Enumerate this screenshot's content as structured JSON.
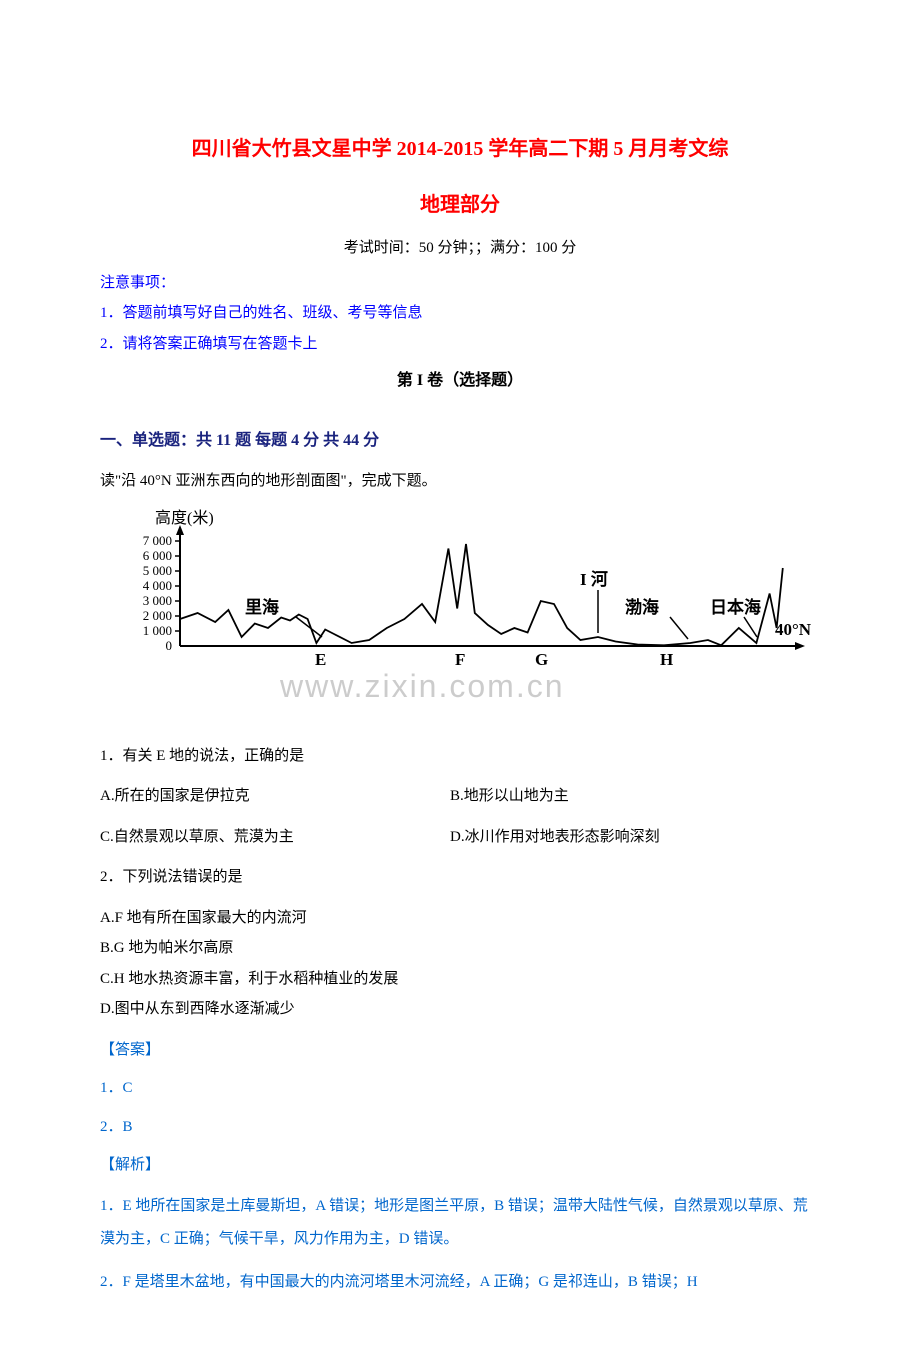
{
  "title": {
    "main": "四川省大竹县文星中学 2014-2015 学年高二下期 5 月月考文综",
    "sub": "地理部分"
  },
  "exam_info": "考试时间：50 分钟；；满分：100 分",
  "notice": {
    "header": "注意事项：",
    "items": [
      "1．答题前填写好自己的姓名、班级、考号等信息",
      "2．请将答案正确填写在答题卡上"
    ]
  },
  "section_header": "第 I 卷（选择题）",
  "question_type": "一、单选题：共 11 题 每题 4 分 共 44 分",
  "instruction": "读\"沿 40°N 亚洲东西向的地形剖面图\"，完成下题。",
  "chart": {
    "type": "line",
    "y_axis_label": "高度(米)",
    "y_ticks": [
      "7 000",
      "6 000",
      "5 000",
      "4 000",
      "3 000",
      "2 000",
      "1 000",
      "0"
    ],
    "x_labels": [
      "E",
      "F",
      "G",
      "H"
    ],
    "annotations": [
      "里海",
      "I 河",
      "渤海",
      "日本海"
    ],
    "right_label": "40°N",
    "line_color": "#000000",
    "background_color": "#ffffff",
    "axis_color": "#000000",
    "y_range": [
      0,
      7000
    ],
    "profile_points": [
      [
        0,
        1800
      ],
      [
        20,
        2200
      ],
      [
        40,
        1600
      ],
      [
        55,
        2400
      ],
      [
        70,
        600
      ],
      [
        85,
        1500
      ],
      [
        100,
        1200
      ],
      [
        115,
        1900
      ],
      [
        125,
        1700
      ],
      [
        135,
        2100
      ],
      [
        145,
        1800
      ],
      [
        155,
        200
      ],
      [
        165,
        1100
      ],
      [
        175,
        800
      ],
      [
        195,
        200
      ],
      [
        215,
        400
      ],
      [
        235,
        1200
      ],
      [
        255,
        1800
      ],
      [
        275,
        2800
      ],
      [
        290,
        1600
      ],
      [
        305,
        6500
      ],
      [
        315,
        2500
      ],
      [
        325,
        6800
      ],
      [
        335,
        2200
      ],
      [
        350,
        1400
      ],
      [
        365,
        800
      ],
      [
        380,
        1200
      ],
      [
        395,
        900
      ],
      [
        410,
        3000
      ],
      [
        425,
        2800
      ],
      [
        440,
        1200
      ],
      [
        455,
        400
      ],
      [
        475,
        600
      ],
      [
        495,
        300
      ],
      [
        520,
        100
      ],
      [
        550,
        50
      ],
      [
        580,
        200
      ],
      [
        600,
        400
      ],
      [
        615,
        50
      ],
      [
        635,
        1200
      ],
      [
        655,
        200
      ],
      [
        670,
        3500
      ],
      [
        678,
        1200
      ],
      [
        685,
        5200
      ]
    ]
  },
  "watermark": "www.zixin.com.cn",
  "questions": [
    {
      "number": "1．",
      "text": "有关 E 地的说法，正确的是",
      "options": [
        {
          "label": "A.",
          "text": "所在的国家是伊拉克"
        },
        {
          "label": "B.",
          "text": "地形以山地为主"
        },
        {
          "label": "C.",
          "text": "自然景观以草原、荒漠为主"
        },
        {
          "label": "D.",
          "text": "冰川作用对地表形态影响深刻"
        }
      ]
    },
    {
      "number": "2．",
      "text": "下列说法错误的是",
      "options": [
        {
          "label": "A.",
          "text": "F 地有所在国家最大的内流河"
        },
        {
          "label": "B.",
          "text": "G 地为帕米尔高原"
        },
        {
          "label": "C.",
          "text": "H 地水热资源丰富，利于水稻种植业的发展"
        },
        {
          "label": "D.",
          "text": "图中从东到西降水逐渐减少"
        }
      ]
    }
  ],
  "answer": {
    "label": "【答案】",
    "items": [
      "1．C",
      "2．B"
    ]
  },
  "analysis": {
    "label": "【解析】",
    "items": [
      "1．E 地所在国家是土库曼斯坦，A 错误；地形是图兰平原，B 错误；温带大陆性气候，自然景观以草原、荒漠为主，C 正确；气候干旱，风力作用为主，D 错误。",
      "2．F 是塔里木盆地，有中国最大的内流河塔里木河流经，A 正确；G 是祁连山，B 错误；H"
    ]
  }
}
